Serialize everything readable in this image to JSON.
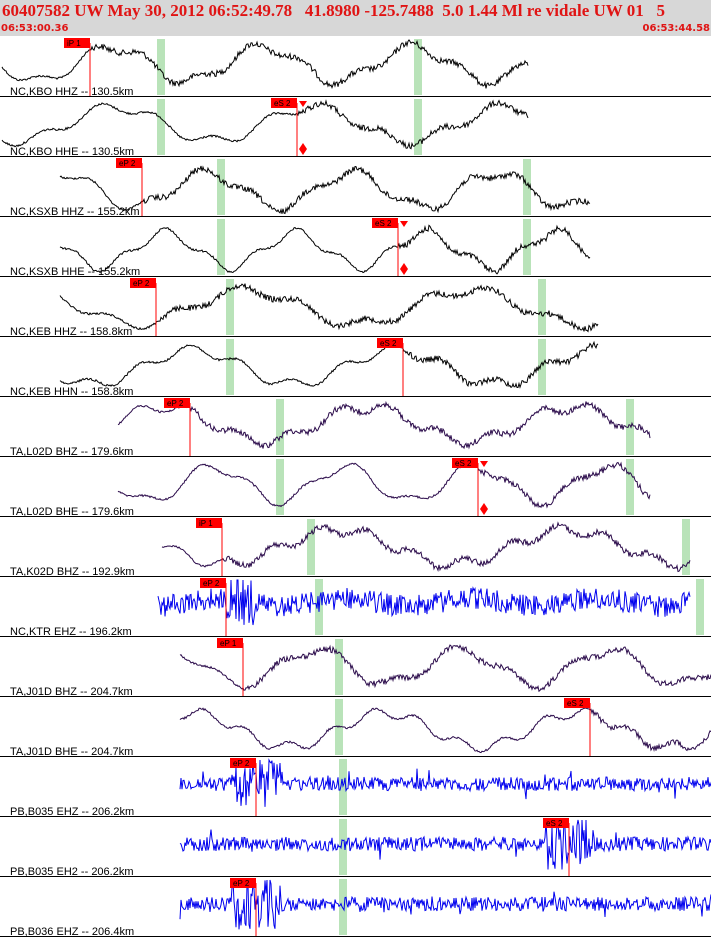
{
  "header": {
    "title": "60407582 UW May 30, 2012 06:52:49.78   41.8980 -125.7488  5.0 1.44 Ml re vidale UW 01   5",
    "start_time": "06:53:00.36",
    "end_time": "06:53:44.58"
  },
  "colors": {
    "header_bg": "#d7d7d7",
    "header_text": "#e01414",
    "pick_flag": "#ff0000",
    "window_marker": "#b9e3b9",
    "trace_black": "#000000",
    "trace_purple": "#2a0a4a",
    "trace_blue": "#0000ee"
  },
  "traces": [
    {
      "label": "NC,KBO HHZ -- 130.5km",
      "pick": "iP  1",
      "color": "black",
      "style": "wave"
    },
    {
      "label": "NC,KBO HHE -- 130.5km",
      "pick": "eS  2",
      "color": "black",
      "style": "wave"
    },
    {
      "label": "NC,KSXB HHZ -- 155.2km",
      "pick": "eP  2",
      "color": "black",
      "style": "wave"
    },
    {
      "label": "NC,KSXB HHE -- 155.2km",
      "pick": "eS  2",
      "color": "black",
      "style": "wave"
    },
    {
      "label": "NC,KEB HHZ -- 158.8km",
      "pick": "eP  2",
      "color": "black",
      "style": "wave"
    },
    {
      "label": "NC,KEB HHN -- 158.8km",
      "pick": "eS  2",
      "color": "black",
      "style": "wave"
    },
    {
      "label": "TA,L02D BHZ -- 179.6km",
      "pick": "eP  2",
      "color": "purple",
      "style": "wave"
    },
    {
      "label": "TA,L02D BHE -- 179.6km",
      "pick": "eS  2",
      "color": "purple",
      "style": "wave"
    },
    {
      "label": "TA,K02D BHZ -- 192.9km",
      "pick": "iP  1",
      "color": "purple",
      "style": "wave"
    },
    {
      "label": "NC,KTR EHZ -- 196.2km",
      "pick": "eP  2",
      "color": "blue",
      "style": "noise"
    },
    {
      "label": "TA,J01D BHZ -- 204.7km",
      "pick": "eP  1",
      "color": "purple",
      "style": "wave"
    },
    {
      "label": "TA,J01D BHE -- 204.7km",
      "pick": "eS  2",
      "color": "purple",
      "style": "wave"
    },
    {
      "label": "PB,B035 EHZ -- 206.2km",
      "pick": "eP  2",
      "color": "blue",
      "style": "spike"
    },
    {
      "label": "PB,B035 EH2 -- 206.2km",
      "pick": "eS  2",
      "color": "blue",
      "style": "spike"
    },
    {
      "label": "PB,B036 EHZ -- 206.4km",
      "pick": "eP  2",
      "color": "blue",
      "style": "spike"
    }
  ]
}
